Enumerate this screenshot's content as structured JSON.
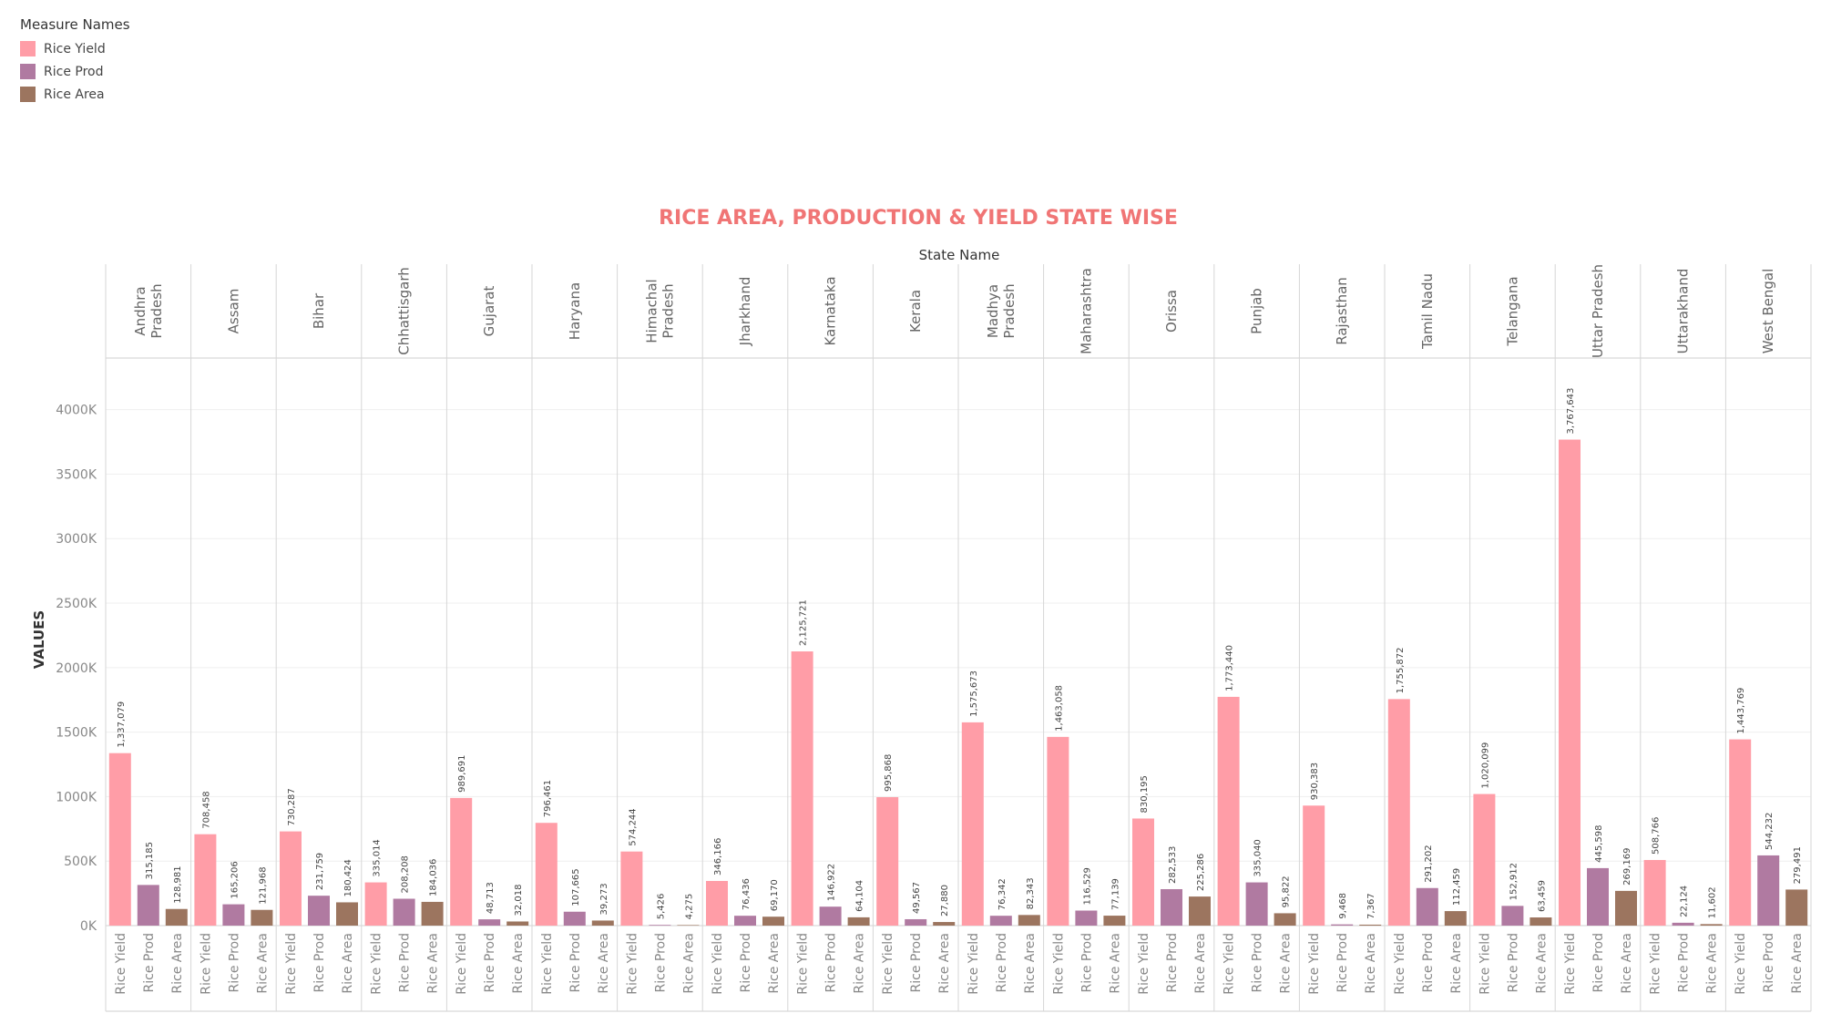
{
  "legend": {
    "title": "Measure Names",
    "items": [
      {
        "label": "Rice Yield",
        "color": "#ff9da7"
      },
      {
        "label": "Rice Prod",
        "color": "#b07aa1"
      },
      {
        "label": "Rice Area",
        "color": "#9c755f"
      }
    ]
  },
  "chart_data": {
    "type": "bar",
    "title": "RICE AREA, PRODUCTION & YIELD STATE WISE",
    "column_header": "State Name",
    "ylabel": "VALUES",
    "ylim": [
      0,
      4400000
    ],
    "yticks": [
      0,
      500000,
      1000000,
      1500000,
      2000000,
      2500000,
      3000000,
      3500000,
      4000000
    ],
    "ytick_labels": [
      "0K",
      "500K",
      "1000K",
      "1500K",
      "2000K",
      "2500K",
      "3000K",
      "3500K",
      "4000K"
    ],
    "title_color": "#f07575",
    "measures": [
      "Rice Yield",
      "Rice Prod",
      "Rice Area"
    ],
    "colors": [
      "#ff9da7",
      "#b07aa1",
      "#9c755f"
    ],
    "categories": [
      {
        "name": [
          "Andhra",
          "Pradesh"
        ],
        "values": [
          1337079,
          315185,
          128981
        ],
        "labels": [
          "1,337,079",
          "315,185",
          "128,981"
        ]
      },
      {
        "name": [
          "Assam"
        ],
        "values": [
          708458,
          165206,
          121968
        ],
        "labels": [
          "708,458",
          "165,206",
          "121,968"
        ]
      },
      {
        "name": [
          "Bihar"
        ],
        "values": [
          730287,
          231759,
          180424
        ],
        "labels": [
          "730,287",
          "231,759",
          "180,424"
        ]
      },
      {
        "name": [
          "Chhattisgarh"
        ],
        "values": [
          335014,
          208208,
          184036
        ],
        "labels": [
          "335,014",
          "208,208",
          "184,036"
        ]
      },
      {
        "name": [
          "Gujarat"
        ],
        "values": [
          989691,
          48713,
          32018
        ],
        "labels": [
          "989,691",
          "48,713",
          "32,018"
        ]
      },
      {
        "name": [
          "Haryana"
        ],
        "values": [
          796461,
          107665,
          39273
        ],
        "labels": [
          "796,461",
          "107,665",
          "39,273"
        ]
      },
      {
        "name": [
          "Himachal",
          "Pradesh"
        ],
        "values": [
          574244,
          5426,
          4275
        ],
        "labels": [
          "574,244",
          "5,426",
          "4,275"
        ]
      },
      {
        "name": [
          "Jharkhand"
        ],
        "values": [
          346166,
          76436,
          69170
        ],
        "labels": [
          "346,166",
          "76,436",
          "69,170"
        ]
      },
      {
        "name": [
          "Karnataka"
        ],
        "values": [
          2125721,
          146922,
          64104
        ],
        "labels": [
          "2,125,721",
          "146,922",
          "64,104"
        ]
      },
      {
        "name": [
          "Kerala"
        ],
        "values": [
          995868,
          49567,
          27880
        ],
        "labels": [
          "995,868",
          "49,567",
          "27,880"
        ]
      },
      {
        "name": [
          "Madhya",
          "Pradesh"
        ],
        "values": [
          1575673,
          76342,
          82343
        ],
        "labels": [
          "1,575,673",
          "76,342",
          "82,343"
        ]
      },
      {
        "name": [
          "Maharashtra"
        ],
        "values": [
          1463058,
          116529,
          77139
        ],
        "labels": [
          "1,463,058",
          "116,529",
          "77,139"
        ]
      },
      {
        "name": [
          "Orissa"
        ],
        "values": [
          830195,
          282533,
          225286
        ],
        "labels": [
          "830,195",
          "282,533",
          "225,286"
        ]
      },
      {
        "name": [
          "Punjab"
        ],
        "values": [
          1773440,
          335040,
          95822
        ],
        "labels": [
          "1,773,440",
          "335,040",
          "95,822"
        ]
      },
      {
        "name": [
          "Rajasthan"
        ],
        "values": [
          930383,
          9468,
          7367
        ],
        "labels": [
          "930,383",
          "9,468",
          "7,367"
        ]
      },
      {
        "name": [
          "Tamil Nadu"
        ],
        "values": [
          1755872,
          291202,
          112459
        ],
        "labels": [
          "1,755,872",
          "291,202",
          "112,459"
        ]
      },
      {
        "name": [
          "Telangana"
        ],
        "values": [
          1020099,
          152912,
          63459
        ],
        "labels": [
          "1,020,099",
          "152,912",
          "63,459"
        ]
      },
      {
        "name": [
          "Uttar Pradesh"
        ],
        "values": [
          3767643,
          445598,
          269169
        ],
        "labels": [
          "3,767,643",
          "445,598",
          "269,169"
        ]
      },
      {
        "name": [
          "Uttarakhand"
        ],
        "values": [
          508766,
          22124,
          11602
        ],
        "labels": [
          "508,766",
          "22,124",
          "11,602"
        ]
      },
      {
        "name": [
          "West Bengal"
        ],
        "values": [
          1443769,
          544232,
          279491
        ],
        "labels": [
          "1,443,769",
          "544,232",
          "279,491"
        ]
      }
    ]
  }
}
